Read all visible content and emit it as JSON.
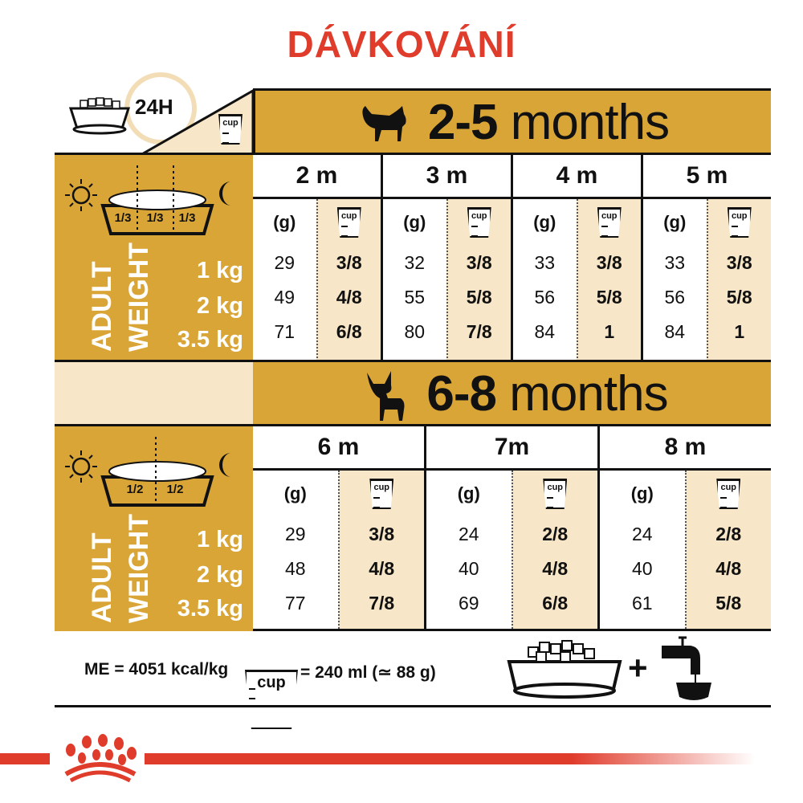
{
  "title": "DÁVKOVÁNÍ",
  "top_left": {
    "period": "24H",
    "cup_label": "cup"
  },
  "sections": [
    {
      "header": {
        "range": "2-5",
        "unit": "months"
      },
      "split": [
        "1/3",
        "1/3",
        "1/3"
      ],
      "adult_weight_label": [
        "ADULT",
        "WEIGHT"
      ],
      "weights": [
        "1 kg",
        "2 kg",
        "3.5 kg"
      ],
      "grams_label": "(g)",
      "cup_label": "cup",
      "months": [
        {
          "label": "2 m",
          "grams": [
            "29",
            "49",
            "71"
          ],
          "cups": [
            "3/8",
            "4/8",
            "6/8"
          ]
        },
        {
          "label": "3 m",
          "grams": [
            "32",
            "55",
            "80"
          ],
          "cups": [
            "3/8",
            "5/8",
            "7/8"
          ]
        },
        {
          "label": "4 m",
          "grams": [
            "33",
            "56",
            "84"
          ],
          "cups": [
            "3/8",
            "5/8",
            "1"
          ]
        },
        {
          "label": "5 m",
          "grams": [
            "33",
            "56",
            "84"
          ],
          "cups": [
            "3/8",
            "5/8",
            "1"
          ]
        }
      ]
    },
    {
      "header": {
        "range": "6-8",
        "unit": "months"
      },
      "split": [
        "1/2",
        "1/2"
      ],
      "adult_weight_label": [
        "ADULT",
        "WEIGHT"
      ],
      "weights": [
        "1 kg",
        "2 kg",
        "3.5 kg"
      ],
      "grams_label": "(g)",
      "cup_label": "cup",
      "months": [
        {
          "label": "6 m",
          "grams": [
            "29",
            "48",
            "77"
          ],
          "cups": [
            "3/8",
            "4/8",
            "7/8"
          ]
        },
        {
          "label": "7m",
          "grams": [
            "24",
            "40",
            "69"
          ],
          "cups": [
            "2/8",
            "4/8",
            "6/8"
          ]
        },
        {
          "label": "8 m",
          "grams": [
            "24",
            "40",
            "61"
          ],
          "cups": [
            "2/8",
            "4/8",
            "5/8"
          ]
        }
      ]
    }
  ],
  "footer": {
    "energy": "ME = 4051 kcal/kg",
    "cup_label": "cup",
    "cup_equiv": "= 240 ml (≃ 88 g)",
    "plus": "+"
  },
  "colors": {
    "title": "#E03C2C",
    "gold": "#D9A536",
    "cream": "#F7E6C7",
    "brand": "#E03C2C"
  }
}
